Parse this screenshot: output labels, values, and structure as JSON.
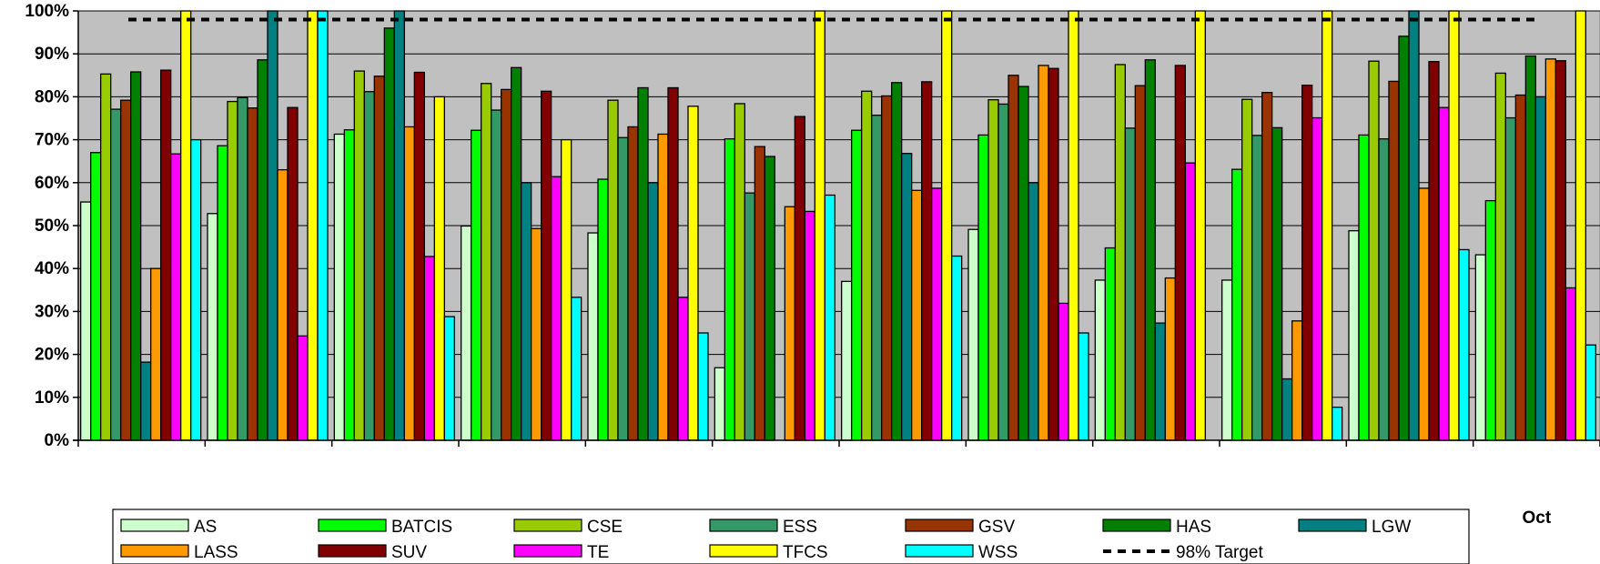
{
  "chart_data": {
    "type": "bar",
    "categories": [
      "",
      "",
      "",
      "",
      "",
      "",
      "",
      "",
      "",
      "",
      "",
      "Oct"
    ],
    "ylim": [
      0,
      100
    ],
    "y_ticks": [
      "0%",
      "10%",
      "20%",
      "30%",
      "40%",
      "50%",
      "60%",
      "70%",
      "80%",
      "90%",
      "100%"
    ],
    "grid": true,
    "legend_position": "bottom",
    "plot_background": "#C0C0C0",
    "target": {
      "name": "98% Target",
      "value": 98,
      "color": "#000000",
      "style": "dashed"
    },
    "series": [
      {
        "name": "AS",
        "color": "#CCFFCC",
        "values": [
          55.5,
          52.8,
          71.3,
          49.9,
          48.3,
          16.9,
          37.0,
          49.1,
          37.3,
          37.3,
          48.8,
          43.2
        ]
      },
      {
        "name": "BATCIS",
        "color": "#00FF00",
        "values": [
          67.0,
          68.6,
          72.3,
          72.2,
          60.8,
          70.2,
          72.2,
          71.1,
          44.8,
          63.1,
          71.1,
          55.8
        ]
      },
      {
        "name": "CSE",
        "color": "#99CC00",
        "values": [
          85.3,
          78.9,
          86.0,
          83.1,
          79.2,
          78.4,
          81.3,
          79.3,
          87.5,
          79.4,
          88.3,
          85.5
        ]
      },
      {
        "name": "ESS",
        "color": "#339966",
        "values": [
          77.1,
          79.8,
          81.2,
          76.9,
          70.5,
          57.6,
          75.7,
          78.3,
          72.7,
          71.0,
          70.2,
          75.1
        ]
      },
      {
        "name": "GSV",
        "color": "#993300",
        "values": [
          79.2,
          77.4,
          84.8,
          81.7,
          73.0,
          68.4,
          80.2,
          85.0,
          82.6,
          81.0,
          83.6,
          80.4
        ]
      },
      {
        "name": "HAS",
        "color": "#008000",
        "values": [
          85.8,
          88.6,
          96.0,
          86.8,
          82.1,
          66.1,
          83.3,
          82.4,
          88.6,
          72.8,
          94.1,
          89.5
        ]
      },
      {
        "name": "LGW",
        "color": "#008080",
        "values": [
          18.2,
          100,
          100,
          60.0,
          60.0,
          null,
          66.8,
          60.0,
          27.3,
          14.3,
          100,
          80.0
        ]
      },
      {
        "name": "LASS",
        "color": "#FF9900",
        "values": [
          40.0,
          63.0,
          73.0,
          49.3,
          71.3,
          54.4,
          58.2,
          87.3,
          37.8,
          27.8,
          58.7,
          88.8
        ]
      },
      {
        "name": "SUV",
        "color": "#800000",
        "values": [
          86.2,
          77.5,
          85.7,
          81.3,
          82.1,
          75.4,
          83.5,
          86.6,
          87.3,
          82.7,
          88.2,
          88.4
        ]
      },
      {
        "name": "TE",
        "color": "#FF00FF",
        "values": [
          66.7,
          24.3,
          42.8,
          61.4,
          33.3,
          53.3,
          58.7,
          31.9,
          64.6,
          75.1,
          77.5,
          35.5
        ]
      },
      {
        "name": "TFCS",
        "color": "#FFFF00",
        "values": [
          100,
          100,
          80.0,
          70.0,
          77.8,
          100,
          100,
          100,
          100,
          100,
          100,
          100
        ]
      },
      {
        "name": "WSS",
        "color": "#00FFFF",
        "values": [
          70.0,
          100,
          28.8,
          33.3,
          25.0,
          57.1,
          42.9,
          25.0,
          null,
          7.7,
          44.4,
          22.2
        ]
      }
    ]
  }
}
